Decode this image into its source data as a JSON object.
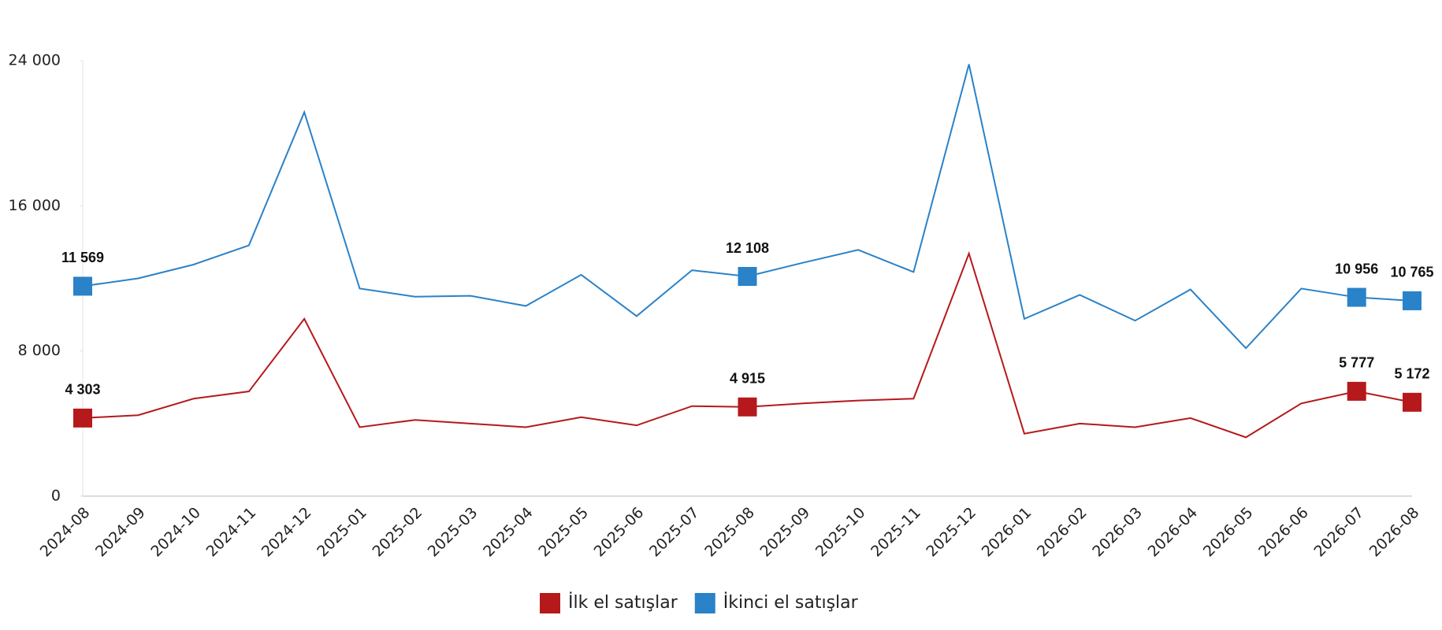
{
  "chart_data": {
    "type": "line",
    "categories": [
      "2024-08",
      "2024-09",
      "2024-10",
      "2024-11",
      "2024-12",
      "2025-01",
      "2025-02",
      "2025-03",
      "2025-04",
      "2025-05",
      "2025-06",
      "2025-07",
      "2025-08",
      "2025-09",
      "2025-10",
      "2025-11",
      "2025-12",
      "2026-01",
      "2026-02",
      "2026-03",
      "2026-04",
      "2026-05",
      "2026-06",
      "2026-07",
      "2026-08"
    ],
    "series": [
      {
        "name": "İlk el satışlar",
        "color": "#b5191b",
        "values": [
          4303,
          4460,
          5370,
          5770,
          9770,
          3800,
          4200,
          4000,
          3800,
          4350,
          3900,
          4960,
          4915,
          5110,
          5270,
          5370,
          13370,
          3440,
          4000,
          3800,
          4300,
          3240,
          5110,
          5777,
          5172
        ],
        "value_labels": [
          "4 303",
          null,
          null,
          null,
          null,
          null,
          null,
          null,
          null,
          null,
          null,
          null,
          "4 915",
          null,
          null,
          null,
          null,
          null,
          null,
          null,
          null,
          null,
          null,
          "5 777",
          "5 172"
        ]
      },
      {
        "name": "İkinci el satışlar",
        "color": "#2a82c8",
        "values": [
          11569,
          12000,
          12760,
          13820,
          21160,
          11440,
          10990,
          11040,
          10480,
          12200,
          9920,
          12450,
          12108,
          12860,
          13570,
          12350,
          23800,
          9770,
          11090,
          9670,
          11390,
          8150,
          11440,
          10956,
          10765
        ],
        "value_labels": [
          "11 569",
          null,
          null,
          null,
          null,
          null,
          null,
          null,
          null,
          null,
          null,
          null,
          "12 108",
          null,
          null,
          null,
          null,
          null,
          null,
          null,
          null,
          null,
          null,
          "10 956",
          "10 765"
        ]
      }
    ],
    "ylim": [
      0,
      24000
    ],
    "yticks": [
      0,
      {
        "value": 8000,
        "label": "8 000"
      },
      {
        "value": 16000,
        "label": "16 000"
      },
      {
        "value": 24000,
        "label": "24 000"
      }
    ],
    "grid": false,
    "legend": "bottom"
  }
}
